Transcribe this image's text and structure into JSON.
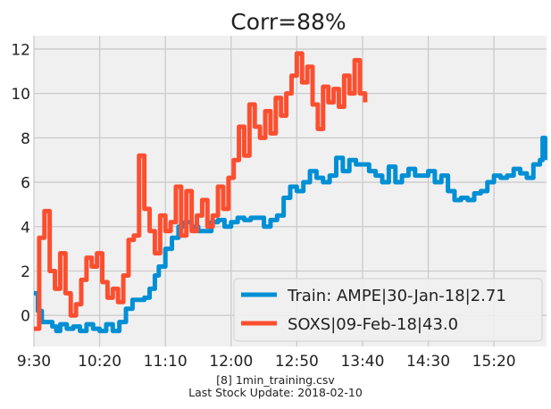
{
  "chart_data": {
    "type": "line",
    "title": "Corr=88%",
    "xlabel": "",
    "ylabel": "",
    "x_tick_labels": [
      "9:30",
      "10:20",
      "11:10",
      "12:00",
      "12:50",
      "13:40",
      "14:30",
      "15:20"
    ],
    "y_ticks": [
      0,
      2,
      4,
      6,
      8,
      10,
      12
    ],
    "ylim": [
      -1.4,
      12.6
    ],
    "xlim_minutes": [
      0,
      390
    ],
    "grid": true,
    "legend_position": "lower-right",
    "series": [
      {
        "name": "Train: AMPE|30-Jan-18|2.71",
        "color": "#008fd5",
        "x": [
          0,
          3,
          6,
          10,
          14,
          17,
          20,
          25,
          30,
          35,
          40,
          45,
          50,
          55,
          60,
          65,
          70,
          75,
          80,
          84,
          88,
          92,
          95,
          100,
          105,
          110,
          115,
          120,
          125,
          130,
          135,
          140,
          145,
          150,
          155,
          160,
          165,
          170,
          175,
          180,
          185,
          190,
          195,
          200,
          205,
          210,
          215,
          220,
          225,
          230,
          235,
          240,
          245,
          250,
          255,
          260,
          265,
          270,
          275,
          280,
          285,
          290,
          295,
          300,
          305,
          310,
          315,
          320,
          325,
          330,
          335,
          340,
          345,
          350,
          355,
          360,
          365,
          370,
          375,
          380,
          385,
          387,
          389
        ],
        "y": [
          1.0,
          0.2,
          -0.3,
          -0.3,
          -0.5,
          -0.7,
          -0.4,
          -0.6,
          -0.5,
          -0.7,
          -0.4,
          -0.6,
          -0.7,
          -0.4,
          -0.7,
          -0.3,
          0.3,
          0.7,
          0.7,
          0.8,
          1.2,
          1.8,
          2.2,
          3.0,
          3.5,
          4.0,
          4.2,
          4.0,
          3.8,
          3.8,
          4.2,
          4.3,
          4.0,
          4.2,
          4.4,
          4.3,
          4.4,
          4.4,
          4.0,
          4.3,
          4.5,
          5.3,
          5.8,
          5.6,
          6.0,
          6.5,
          6.2,
          6.0,
          6.3,
          7.1,
          6.5,
          7.0,
          6.8,
          6.8,
          6.5,
          6.3,
          6.0,
          6.7,
          6.0,
          6.3,
          6.6,
          6.3,
          6.3,
          6.5,
          6.0,
          6.3,
          5.6,
          5.2,
          5.3,
          5.2,
          5.5,
          5.6,
          6.0,
          6.3,
          6.2,
          6.3,
          6.6,
          6.4,
          6.2,
          6.8,
          7.0,
          8.0,
          7.0
        ]
      },
      {
        "name": "SOXS|09-Feb-18|43.0",
        "color": "#fc4f30",
        "x": [
          0,
          4,
          8,
          12,
          16,
          20,
          24,
          28,
          32,
          36,
          40,
          44,
          48,
          52,
          56,
          60,
          64,
          68,
          72,
          76,
          80,
          84,
          88,
          92,
          96,
          100,
          104,
          108,
          112,
          116,
          120,
          124,
          128,
          132,
          136,
          140,
          144,
          148,
          152,
          156,
          160,
          164,
          168,
          172,
          176,
          180,
          184,
          188,
          192,
          196,
          200,
          204,
          208,
          212,
          216,
          220,
          224,
          228,
          232,
          236,
          240,
          244,
          248,
          252
        ],
        "y": [
          -0.6,
          3.5,
          4.7,
          2.0,
          1.2,
          2.8,
          1.0,
          0.0,
          0.5,
          1.6,
          2.6,
          2.2,
          2.8,
          1.5,
          0.8,
          1.2,
          0.6,
          1.8,
          3.4,
          3.6,
          7.2,
          4.8,
          3.8,
          2.8,
          4.5,
          3.8,
          4.2,
          5.8,
          3.6,
          5.6,
          3.8,
          4.5,
          5.2,
          4.0,
          4.5,
          5.8,
          4.8,
          6.2,
          7.0,
          8.5,
          7.2,
          9.5,
          8.5,
          8.0,
          9.2,
          8.2,
          9.8,
          9.0,
          10.0,
          10.8,
          11.8,
          10.5,
          11.2,
          9.5,
          8.4,
          10.3,
          9.6,
          10.2,
          9.4,
          10.8,
          10.0,
          11.5,
          10.0,
          9.6
        ]
      }
    ]
  },
  "caption": {
    "line1": "[8] 1min_training.csv",
    "line2": "Last Stock Update: 2018-02-10"
  },
  "colors": {
    "plot_background": "#f0f0f0",
    "grid": "#cbcbcb",
    "legend_background": "#f0f0f0"
  }
}
